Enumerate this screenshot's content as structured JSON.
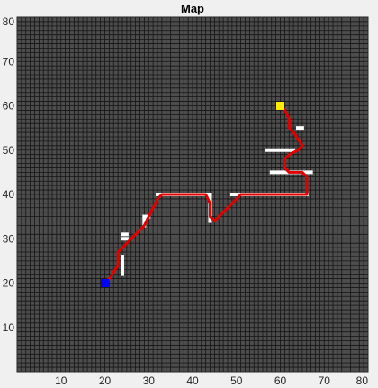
{
  "chart_data": {
    "type": "scatter",
    "title": "Map",
    "xlabel": "",
    "ylabel": "",
    "xlim": [
      0,
      80
    ],
    "ylim": [
      0,
      80
    ],
    "x_ticks": [
      10,
      20,
      30,
      40,
      50,
      60,
      70,
      80
    ],
    "y_ticks": [
      10,
      20,
      30,
      40,
      50,
      60,
      70,
      80
    ],
    "grid_cell_size": 1,
    "grid": true,
    "colors": {
      "free_cell": "#4d4d4d",
      "grid_line": "#141414",
      "obstacle": "#ffffff",
      "path": "#e00000",
      "start": "#0000ff",
      "goal": "#ffee00",
      "figure_bg": "#f0f0f0"
    },
    "start": [
      20,
      20
    ],
    "goal": [
      60,
      60
    ],
    "obstacle_segments": [
      [
        [
          24,
          22
        ],
        [
          24,
          26
        ]
      ],
      [
        [
          24,
          30
        ],
        [
          25,
          30
        ]
      ],
      [
        [
          24,
          31
        ],
        [
          25,
          31
        ]
      ],
      [
        [
          29,
          33
        ],
        [
          29,
          35
        ]
      ],
      [
        [
          29,
          35
        ],
        [
          30,
          35
        ]
      ],
      [
        [
          32,
          40
        ],
        [
          44,
          40
        ]
      ],
      [
        [
          44,
          40
        ],
        [
          44,
          34
        ]
      ],
      [
        [
          49,
          40
        ],
        [
          66,
          40
        ]
      ],
      [
        [
          58,
          45
        ],
        [
          67,
          45
        ]
      ],
      [
        [
          57,
          50
        ],
        [
          63,
          50
        ]
      ],
      [
        [
          64,
          55
        ],
        [
          65,
          55
        ]
      ]
    ],
    "path": [
      [
        20,
        20
      ],
      [
        21,
        21
      ],
      [
        23,
        24
      ],
      [
        23,
        27
      ],
      [
        25,
        29
      ],
      [
        27,
        31
      ],
      [
        29,
        33
      ],
      [
        30,
        35
      ],
      [
        31,
        37
      ],
      [
        32,
        39
      ],
      [
        33,
        40
      ],
      [
        43,
        40
      ],
      [
        44,
        38
      ],
      [
        44,
        35
      ],
      [
        45,
        34
      ],
      [
        46,
        35
      ],
      [
        47,
        36
      ],
      [
        48,
        37
      ],
      [
        50,
        39
      ],
      [
        51,
        40
      ],
      [
        52,
        40
      ],
      [
        62,
        40
      ],
      [
        66,
        40
      ],
      [
        66,
        44
      ],
      [
        65,
        45
      ],
      [
        62,
        45
      ],
      [
        61,
        46
      ],
      [
        61,
        48
      ],
      [
        62,
        49
      ],
      [
        64,
        50
      ],
      [
        65,
        51
      ],
      [
        63,
        54
      ],
      [
        62,
        55
      ],
      [
        62,
        57
      ],
      [
        61,
        59
      ],
      [
        60,
        60
      ]
    ]
  }
}
